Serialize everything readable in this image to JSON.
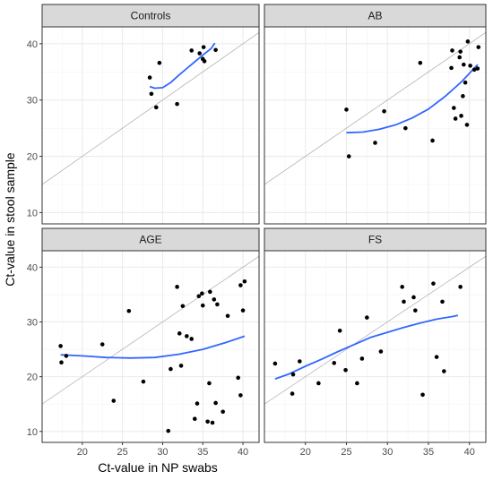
{
  "chart_data": {
    "type": "scatter",
    "xlabel": "Ct-value in NP swabs",
    "ylabel": "Ct-value in stool sample",
    "xlim": [
      15,
      42
    ],
    "ylim": [
      8,
      43
    ],
    "x_ticks": [
      20,
      25,
      30,
      35,
      40
    ],
    "y_ticks": [
      10,
      20,
      30,
      40
    ],
    "x_tick_labels": [
      "20",
      "25",
      "30",
      "35",
      "40"
    ],
    "y_tick_labels": [
      "10",
      "20",
      "30",
      "40"
    ],
    "grid": true,
    "reference_line": "identity",
    "colors": {
      "points": "#000000",
      "smooth": "#3366FF",
      "reference": "#b3b3b3",
      "strip_bg": "#d9d9d9",
      "grid": "#ebebeb"
    },
    "panels": [
      {
        "title": "Controls",
        "points": [
          [
            28.4,
            34.0
          ],
          [
            28.6,
            31.1
          ],
          [
            29.2,
            28.7
          ],
          [
            29.6,
            36.6
          ],
          [
            31.8,
            29.3
          ],
          [
            33.6,
            38.8
          ],
          [
            34.6,
            38.3
          ],
          [
            35.0,
            37.3
          ],
          [
            35.1,
            39.4
          ],
          [
            35.2,
            36.9
          ],
          [
            36.6,
            38.9
          ]
        ],
        "smooth": [
          [
            28.4,
            32.4
          ],
          [
            29.0,
            32.1
          ],
          [
            30.0,
            32.2
          ],
          [
            31.0,
            33.1
          ],
          [
            32.0,
            34.4
          ],
          [
            33.0,
            35.6
          ],
          [
            34.0,
            36.8
          ],
          [
            35.0,
            38.0
          ],
          [
            36.0,
            39.1
          ],
          [
            36.5,
            40.1
          ]
        ]
      },
      {
        "title": "AB",
        "points": [
          [
            25.0,
            28.3
          ],
          [
            25.3,
            20.0
          ],
          [
            28.5,
            22.4
          ],
          [
            29.6,
            28.0
          ],
          [
            32.2,
            25.0
          ],
          [
            34.0,
            36.6
          ],
          [
            35.5,
            22.8
          ],
          [
            37.8,
            35.7
          ],
          [
            37.9,
            38.8
          ],
          [
            38.1,
            28.6
          ],
          [
            38.3,
            26.7
          ],
          [
            38.8,
            37.6
          ],
          [
            38.9,
            38.6
          ],
          [
            39.0,
            27.2
          ],
          [
            39.2,
            30.7
          ],
          [
            39.3,
            36.3
          ],
          [
            39.5,
            33.1
          ],
          [
            39.7,
            25.6
          ],
          [
            39.8,
            40.4
          ],
          [
            40.1,
            36.1
          ],
          [
            40.6,
            35.4
          ],
          [
            41.0,
            35.6
          ],
          [
            41.1,
            39.4
          ]
        ],
        "smooth": [
          [
            25.0,
            24.2
          ],
          [
            27.0,
            24.3
          ],
          [
            29.0,
            24.8
          ],
          [
            31.0,
            25.6
          ],
          [
            33.0,
            26.8
          ],
          [
            35.0,
            28.4
          ],
          [
            37.0,
            30.6
          ],
          [
            39.0,
            33.2
          ],
          [
            41.0,
            36.3
          ]
        ]
      },
      {
        "title": "AGE",
        "points": [
          [
            17.3,
            25.6
          ],
          [
            17.4,
            22.6
          ],
          [
            18.0,
            23.8
          ],
          [
            22.5,
            25.9
          ],
          [
            23.9,
            15.6
          ],
          [
            25.8,
            32.0
          ],
          [
            27.6,
            19.1
          ],
          [
            30.7,
            10.1
          ],
          [
            31.0,
            21.4
          ],
          [
            31.8,
            36.4
          ],
          [
            32.1,
            27.9
          ],
          [
            32.3,
            22.0
          ],
          [
            32.5,
            32.9
          ],
          [
            33.0,
            27.4
          ],
          [
            33.6,
            26.9
          ],
          [
            34.0,
            12.3
          ],
          [
            34.3,
            15.1
          ],
          [
            34.5,
            34.7
          ],
          [
            34.9,
            35.2
          ],
          [
            35.0,
            33.0
          ],
          [
            35.6,
            11.8
          ],
          [
            35.8,
            18.8
          ],
          [
            35.9,
            35.5
          ],
          [
            36.2,
            11.6
          ],
          [
            36.4,
            34.1
          ],
          [
            36.6,
            15.2
          ],
          [
            36.8,
            33.2
          ],
          [
            37.5,
            13.6
          ],
          [
            38.1,
            31.1
          ],
          [
            39.4,
            19.8
          ],
          [
            39.7,
            36.7
          ],
          [
            39.7,
            16.6
          ],
          [
            40.0,
            32.1
          ],
          [
            40.2,
            37.4
          ]
        ],
        "smooth": [
          [
            17.3,
            24.0
          ],
          [
            20.0,
            23.8
          ],
          [
            23.0,
            23.5
          ],
          [
            26.0,
            23.4
          ],
          [
            29.0,
            23.5
          ],
          [
            32.0,
            24.1
          ],
          [
            35.0,
            25.0
          ],
          [
            38.0,
            26.3
          ],
          [
            40.2,
            27.4
          ]
        ]
      },
      {
        "title": "FS",
        "points": [
          [
            16.3,
            22.4
          ],
          [
            18.4,
            16.9
          ],
          [
            18.5,
            20.4
          ],
          [
            19.3,
            22.8
          ],
          [
            21.6,
            18.8
          ],
          [
            23.5,
            22.5
          ],
          [
            24.2,
            28.4
          ],
          [
            24.9,
            21.2
          ],
          [
            26.3,
            18.8
          ],
          [
            26.9,
            23.3
          ],
          [
            27.5,
            30.8
          ],
          [
            29.2,
            24.6
          ],
          [
            31.8,
            36.4
          ],
          [
            32.0,
            33.7
          ],
          [
            33.2,
            34.5
          ],
          [
            33.4,
            32.1
          ],
          [
            34.3,
            16.7
          ],
          [
            35.6,
            37.0
          ],
          [
            36.0,
            23.6
          ],
          [
            36.7,
            33.7
          ],
          [
            36.9,
            21.0
          ],
          [
            38.9,
            36.4
          ]
        ],
        "smooth": [
          [
            16.3,
            19.6
          ],
          [
            18.0,
            20.5
          ],
          [
            20.0,
            21.9
          ],
          [
            22.0,
            23.2
          ],
          [
            24.0,
            24.6
          ],
          [
            26.0,
            25.9
          ],
          [
            28.0,
            27.2
          ],
          [
            30.0,
            28.1
          ],
          [
            32.0,
            29.0
          ],
          [
            34.0,
            29.8
          ],
          [
            36.0,
            30.5
          ],
          [
            38.0,
            31.0
          ],
          [
            38.6,
            31.2
          ]
        ]
      }
    ]
  }
}
